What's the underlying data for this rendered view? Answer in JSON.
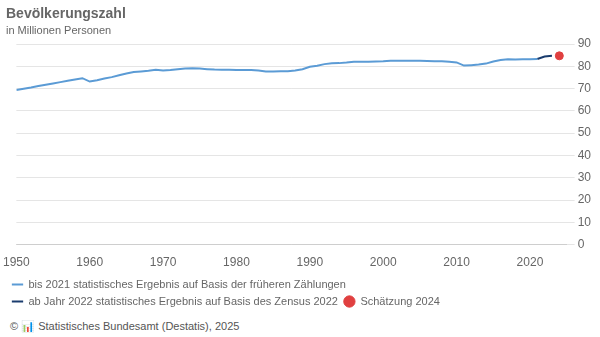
{
  "chart_data": {
    "type": "line",
    "title": "Bevölkerungszahl",
    "subtitle": "in Millionen Personen",
    "source": "© 📊 Statistisches Bundesamt (Destatis), 2025",
    "xlim": [
      1950,
      2025
    ],
    "xticks": [
      1950,
      1960,
      1970,
      1980,
      1990,
      2000,
      2010,
      2020
    ],
    "ylim": [
      0,
      90
    ],
    "yticks": [
      0,
      10,
      20,
      30,
      40,
      50,
      60,
      70,
      80,
      90
    ],
    "grid": true,
    "legend": "bottom",
    "series": [
      {
        "name": "bis 2021 statistisches Ergebnis auf Basis der früheren Zählungen",
        "color": "#5b9bd5",
        "type": "line",
        "x": [
          1950,
          1951,
          1952,
          1953,
          1954,
          1955,
          1956,
          1957,
          1958,
          1959,
          1960,
          1961,
          1962,
          1963,
          1964,
          1965,
          1966,
          1967,
          1968,
          1969,
          1970,
          1971,
          1972,
          1973,
          1974,
          1975,
          1976,
          1977,
          1978,
          1979,
          1980,
          1981,
          1982,
          1983,
          1984,
          1985,
          1986,
          1987,
          1988,
          1989,
          1990,
          1991,
          1992,
          1993,
          1994,
          1995,
          1996,
          1997,
          1998,
          1999,
          2000,
          2001,
          2002,
          2003,
          2004,
          2005,
          2006,
          2007,
          2008,
          2009,
          2010,
          2011,
          2012,
          2013,
          2014,
          2015,
          2016,
          2017,
          2018,
          2019,
          2020,
          2021
        ],
        "values": [
          69.35,
          69.93,
          70.5,
          71.15,
          71.74,
          72.28,
          72.89,
          73.49,
          74.09,
          74.66,
          73.15,
          73.78,
          74.49,
          75.14,
          75.97,
          76.74,
          77.39,
          77.7,
          78.0,
          78.39,
          78.07,
          78.31,
          78.68,
          79.04,
          79.08,
          78.97,
          78.71,
          78.51,
          78.45,
          78.5,
          78.31,
          78.38,
          78.3,
          78.11,
          77.68,
          77.66,
          77.74,
          77.79,
          78.14,
          78.67,
          79.75,
          80.27,
          80.97,
          81.34,
          81.42,
          81.66,
          82.01,
          82.06,
          82.03,
          82.16,
          82.26,
          82.44,
          82.54,
          82.53,
          82.53,
          82.44,
          82.38,
          82.31,
          82.22,
          82.0,
          81.75,
          80.33,
          80.52,
          80.77,
          81.2,
          82.18,
          82.79,
          83.15,
          83.02,
          83.17,
          83.16,
          83.24
        ]
      },
      {
        "name": "ab Jahr 2022 statistisches Ergebnis auf Basis des Zensus 2022",
        "color": "#1a3c6e",
        "type": "line",
        "x": [
          2021,
          2022,
          2023
        ],
        "values": [
          83.24,
          84.36,
          84.71
        ]
      },
      {
        "name": "Schätzung 2024",
        "color": "#e04040",
        "type": "scatter",
        "marker": "circle",
        "x": [
          2024
        ],
        "values": [
          84.7
        ]
      }
    ]
  }
}
